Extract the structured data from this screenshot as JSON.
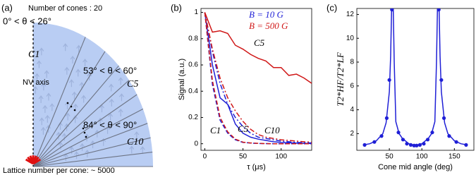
{
  "chart_data": [
    {
      "type": "diagram",
      "panel_label": "(a)",
      "title": "Number of cones : 20",
      "annotations": [
        "0° < θ < 26°",
        "C1",
        "NV axis",
        "53° < θ < 60°",
        "C5",
        "84° < θ < 90°",
        "C10"
      ],
      "footer": "Lattice number per cone: ~ 5000"
    },
    {
      "type": "line",
      "panel_label": "(b)",
      "xlabel": "τ (μs)",
      "ylabel": "Signal (a.u.)",
      "x": [
        0,
        10,
        20,
        30,
        40,
        50,
        60,
        70,
        80,
        90,
        100,
        110,
        120,
        130,
        140
      ],
      "series": [
        {
          "name": "B = 10 G",
          "color": "#1f1fd6",
          "style": "solid",
          "values": [
            1,
            0.6,
            0.35,
            0.3,
            0.15,
            0.08,
            0.05,
            0.035,
            0.025,
            0.015,
            0.01,
            0.008,
            0.005,
            0.003,
            0.002
          ]
        },
        {
          "color": "#1f1fd6",
          "style": "dashed",
          "values": [
            1,
            0.45,
            0.18,
            0.08,
            0.03,
            0.01,
            0.005,
            0.002,
            0.001,
            0,
            0,
            0,
            0,
            0,
            0
          ]
        },
        {
          "color": "#1f1fd6",
          "style": "dashdot",
          "values": [
            1,
            0.7,
            0.46,
            0.3,
            0.2,
            0.13,
            0.08,
            0.05,
            0.04,
            0.03,
            0.02,
            0.015,
            0.01,
            0.008,
            0.006
          ]
        },
        {
          "name": "B = 500 G",
          "color": "#d01818",
          "style": "solid",
          "values": [
            1,
            0.85,
            0.86,
            0.84,
            0.75,
            0.72,
            0.68,
            0.65,
            0.63,
            0.58,
            0.58,
            0.52,
            0.53,
            0.5,
            0.46
          ]
        },
        {
          "color": "#d01818",
          "style": "dashed",
          "values": [
            1,
            0.48,
            0.2,
            0.09,
            0.035,
            0.012,
            0.006,
            0.003,
            0.001,
            0,
            0,
            0,
            0,
            0,
            0
          ]
        },
        {
          "color": "#d01818",
          "style": "dashdot",
          "values": [
            1,
            0.72,
            0.5,
            0.35,
            0.25,
            0.17,
            0.11,
            0.07,
            0.05,
            0.04,
            0.03,
            0.025,
            0.02,
            0.015,
            0.012
          ]
        }
      ],
      "annotations": [
        "C1",
        "C5",
        "C10",
        "C5"
      ],
      "xlim": [
        -5,
        140
      ],
      "ylim": [
        -0.05,
        1.03
      ],
      "xticks": [
        0,
        50,
        100
      ],
      "yticks": [
        0,
        0.2,
        0.4,
        0.6,
        0.8,
        1
      ]
    },
    {
      "type": "line",
      "panel_label": "(c)",
      "xlabel": "Cone mid angle (deg)",
      "ylabel": "T2*HF/T2*LF",
      "series": [
        {
          "color": "#1f1fd6",
          "style": "solid",
          "markers": false,
          "x": [
            10,
            20,
            30,
            40,
            45,
            50,
            52,
            53.5,
            56,
            57.5,
            60,
            65,
            70,
            80,
            90,
            100,
            110,
            115,
            120,
            122.5,
            124,
            126.5,
            128,
            130,
            135,
            140,
            150,
            160,
            170
          ],
          "values": [
            1.05,
            1.15,
            1.4,
            2.0,
            2.9,
            5.5,
            8.5,
            12.5,
            12.5,
            8.0,
            3.0,
            2.0,
            1.6,
            1.15,
            1.0,
            1.15,
            1.6,
            2.0,
            3.0,
            8.0,
            12.5,
            12.5,
            8.5,
            5.5,
            2.9,
            2.0,
            1.4,
            1.15,
            1.05
          ]
        },
        {
          "color": "#1f1fd6",
          "style": "none",
          "markers": true,
          "x": [
            12,
            27,
            38,
            46,
            50,
            54,
            64,
            71,
            77,
            83,
            88,
            92,
            97,
            103,
            109,
            116,
            126,
            130,
            134,
            142,
            153,
            168
          ],
          "values": [
            1.05,
            1.3,
            1.8,
            3.3,
            6.5,
            12.4,
            2.1,
            1.5,
            1.15,
            1.05,
            1.0,
            1.0,
            1.05,
            1.15,
            1.5,
            2.1,
            12.4,
            6.5,
            3.3,
            1.8,
            1.3,
            1.05
          ]
        }
      ],
      "xlim": [
        0,
        180
      ],
      "ylim": [
        0.6,
        12.5
      ],
      "xticks": [
        50,
        100,
        150
      ],
      "yticks": [
        2,
        4,
        6,
        8,
        10,
        12
      ]
    }
  ]
}
